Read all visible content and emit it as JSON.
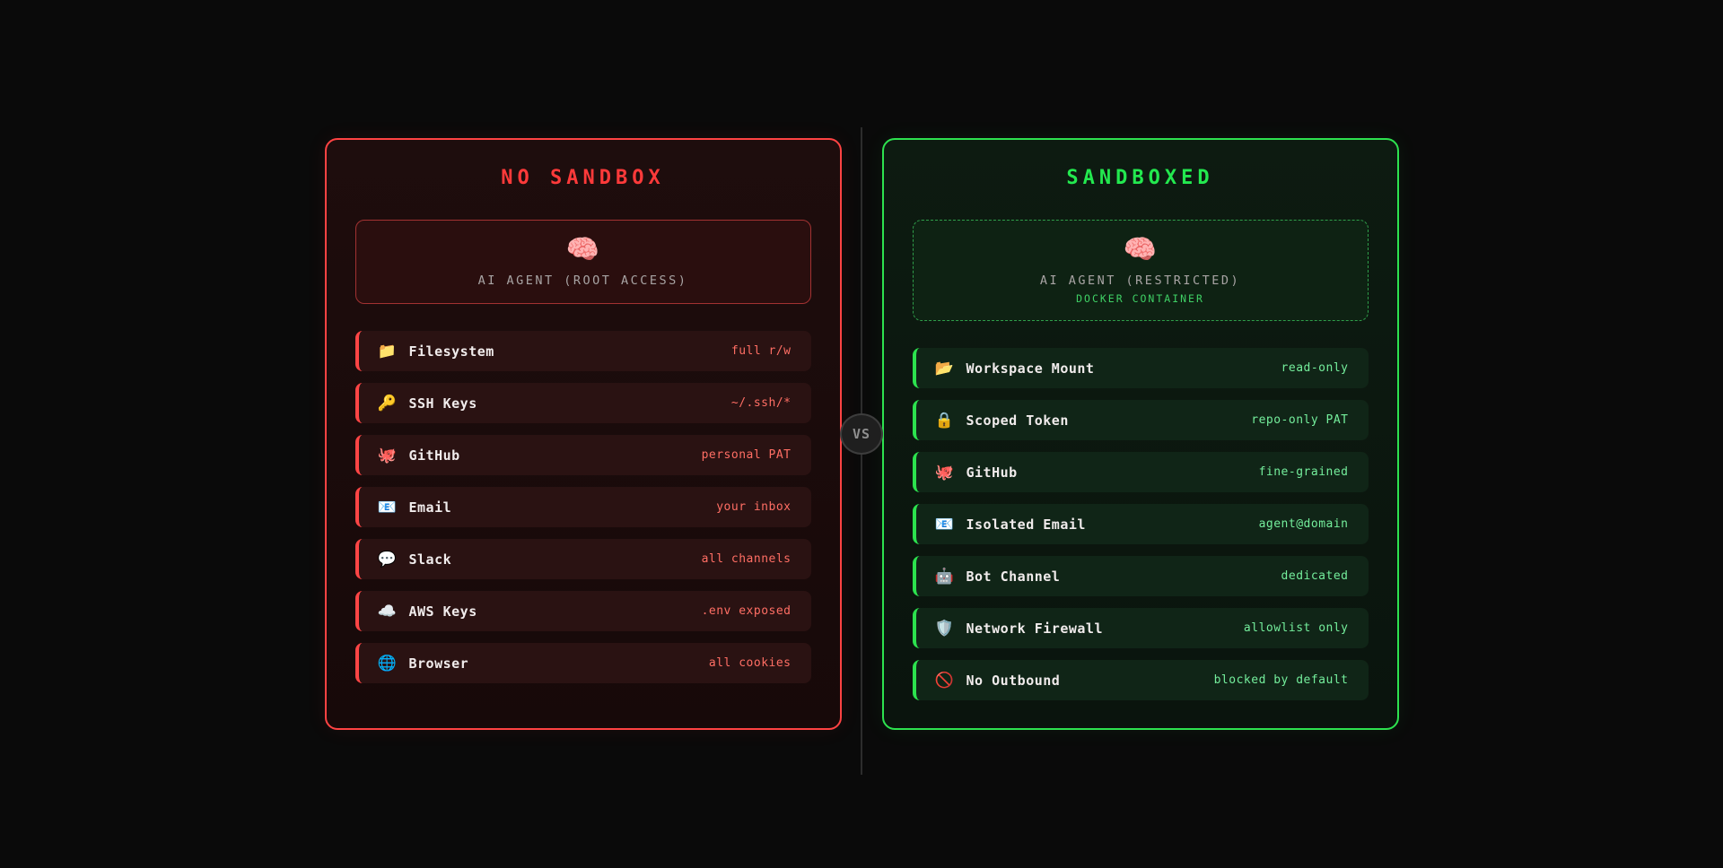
{
  "vs_badge": {
    "label": "VS"
  },
  "colors": {
    "page_background": "#0a0a0a",
    "red_accent": "#ff4343",
    "red_title": "#ff3a3a",
    "red_value": "#ff6e64",
    "green_accent": "#2de24f",
    "green_title": "#23e94f",
    "green_value": "#74ee9c",
    "label_text": "#f1ecec",
    "agent_label_text": "#a8a4a4",
    "docker_text": "#3fd065",
    "vs_text": "#8f8f8f"
  },
  "panels": {
    "no_sandbox": {
      "title": "NO SANDBOX",
      "agent": {
        "icon": "🧠",
        "icon_name": "brain-icon",
        "label": "AI AGENT (ROOT ACCESS)"
      },
      "rows": [
        {
          "icon": "📁",
          "icon_name": "folder-icon",
          "label": "Filesystem",
          "value": "full r/w"
        },
        {
          "icon": "🔑",
          "icon_name": "key-icon",
          "label": "SSH Keys",
          "value": "~/.ssh/*"
        },
        {
          "icon": "🐙",
          "icon_name": "octopus-icon",
          "label": "GitHub",
          "value": "personal PAT"
        },
        {
          "icon": "📧",
          "icon_name": "email-icon",
          "label": "Email",
          "value": "your inbox"
        },
        {
          "icon": "💬",
          "icon_name": "speech-balloon-icon",
          "label": "Slack",
          "value": "all channels"
        },
        {
          "icon": "☁️",
          "icon_name": "cloud-icon",
          "label": "AWS Keys",
          "value": ".env exposed"
        },
        {
          "icon": "🌐",
          "icon_name": "globe-icon",
          "label": "Browser",
          "value": "all cookies"
        }
      ]
    },
    "sandboxed": {
      "title": "SANDBOXED",
      "agent": {
        "icon": "🧠",
        "icon_name": "brain-icon",
        "label": "AI AGENT (RESTRICTED)",
        "sublabel": "DOCKER CONTAINER"
      },
      "rows": [
        {
          "icon": "📂",
          "icon_name": "open-folder-icon",
          "label": "Workspace Mount",
          "value": "read-only"
        },
        {
          "icon": "🔒",
          "icon_name": "lock-icon",
          "label": "Scoped Token",
          "value": "repo-only PAT"
        },
        {
          "icon": "🐙",
          "icon_name": "octopus-icon",
          "label": "GitHub",
          "value": "fine-grained"
        },
        {
          "icon": "📧",
          "icon_name": "email-icon",
          "label": "Isolated Email",
          "value": "agent@domain"
        },
        {
          "icon": "🤖",
          "icon_name": "robot-icon",
          "label": "Bot Channel",
          "value": "dedicated"
        },
        {
          "icon": "🛡️",
          "icon_name": "shield-icon",
          "label": "Network Firewall",
          "value": "allowlist only"
        },
        {
          "icon": "🚫",
          "icon_name": "no-entry-icon",
          "label": "No Outbound",
          "value": "blocked by default"
        }
      ]
    }
  }
}
